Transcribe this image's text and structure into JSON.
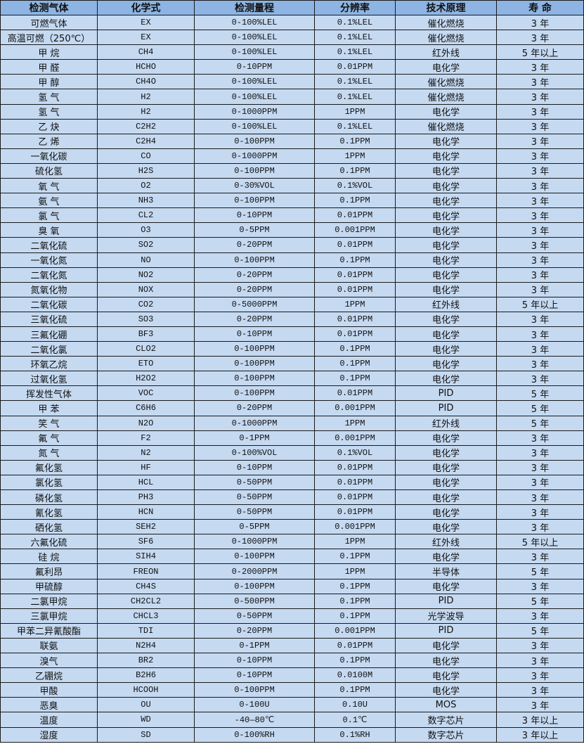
{
  "colors": {
    "header_bg": "#8DB4E2",
    "row_bg": "#C5D9F1",
    "border": "#1a1a1a"
  },
  "headers": [
    "检测气体",
    "化学式",
    "检测量程",
    "分辨率",
    "技术原理",
    "寿 命"
  ],
  "rows": [
    [
      "可燃气体",
      "EX",
      "0-100%LEL",
      "0.1%LEL",
      "催化燃烧",
      "3 年"
    ],
    [
      "高温可燃（250℃）",
      "EX",
      "0-100%LEL",
      "0.1%LEL",
      "催化燃烧",
      "3 年"
    ],
    [
      "甲 烷",
      "CH4",
      "0-100%LEL",
      "0.1%LEL",
      "红外线",
      "5 年以上"
    ],
    [
      "甲 醛",
      "HCHO",
      "0-10PPM",
      "0.01PPM",
      "电化学",
      "3 年"
    ],
    [
      "甲 醇",
      "CH4O",
      "0-100%LEL",
      "0.1%LEL",
      "催化燃烧",
      "3 年"
    ],
    [
      "氢 气",
      "H2",
      "0-100%LEL",
      "0.1%LEL",
      "催化燃烧",
      "3 年"
    ],
    [
      "氢 气",
      "H2",
      "0-1000PPM",
      "1PPM",
      "电化学",
      "3 年"
    ],
    [
      "乙 炔",
      "C2H2",
      "0-100%LEL",
      "0.1%LEL",
      "催化燃烧",
      "3 年"
    ],
    [
      "乙 烯",
      "C2H4",
      "0-100PPM",
      "0.1PPM",
      "电化学",
      "3 年"
    ],
    [
      "一氧化碳",
      "CO",
      "0-1000PPM",
      "1PPM",
      "电化学",
      "3 年"
    ],
    [
      "硫化氢",
      "H2S",
      "0-100PPM",
      "0.1PPM",
      "电化学",
      "3 年"
    ],
    [
      "氧 气",
      "O2",
      "0-30%VOL",
      "0.1%VOL",
      "电化学",
      "3 年"
    ],
    [
      "氨 气",
      "NH3",
      "0-100PPM",
      "0.1PPM",
      "电化学",
      "3 年"
    ],
    [
      "氯 气",
      "CL2",
      "0-10PPM",
      "0.01PPM",
      "电化学",
      "3 年"
    ],
    [
      "臭 氧",
      "O3",
      "0-5PPM",
      "0.001PPM",
      "电化学",
      "3 年"
    ],
    [
      "二氧化硫",
      "SO2",
      "0-20PPM",
      "0.01PPM",
      "电化学",
      "3 年"
    ],
    [
      "一氧化氮",
      "NO",
      "0-100PPM",
      "0.1PPM",
      "电化学",
      "3 年"
    ],
    [
      "二氧化氮",
      "NO2",
      "0-20PPM",
      "0.01PPM",
      "电化学",
      "3 年"
    ],
    [
      "氮氧化物",
      "NOX",
      "0-20PPM",
      "0.01PPM",
      "电化学",
      "3 年"
    ],
    [
      "二氧化碳",
      "CO2",
      "0-5000PPM",
      "1PPM",
      "红外线",
      "5 年以上"
    ],
    [
      "三氧化硫",
      "SO3",
      "0-20PPM",
      "0.01PPM",
      "电化学",
      "3 年"
    ],
    [
      "三氟化硼",
      "BF3",
      "0-10PPM",
      "0.01PPM",
      "电化学",
      "3 年"
    ],
    [
      "二氧化氯",
      "CLO2",
      "0-100PPM",
      "0.1PPM",
      "电化学",
      "3 年"
    ],
    [
      "环氧乙烷",
      "ETO",
      "0-100PPM",
      "0.1PPM",
      "电化学",
      "3 年"
    ],
    [
      "过氧化氢",
      "H2O2",
      "0-100PPM",
      "0.1PPM",
      "电化学",
      "3 年"
    ],
    [
      "挥发性气体",
      "VOC",
      "0-100PPM",
      "0.01PPM",
      "PID",
      "5 年"
    ],
    [
      "甲 苯",
      "C6H6",
      "0-20PPM",
      "0.001PPM",
      "PID",
      "5 年"
    ],
    [
      "笑 气",
      "N2O",
      "0-1000PPM",
      "1PPM",
      "红外线",
      "5 年"
    ],
    [
      "氟 气",
      "F2",
      "0-1PPM",
      "0.001PPM",
      "电化学",
      "3 年"
    ],
    [
      "氮 气",
      "N2",
      "0-100%VOL",
      "0.1%VOL",
      "电化学",
      "3 年"
    ],
    [
      "氟化氢",
      "HF",
      "0-10PPM",
      "0.01PPM",
      "电化学",
      "3 年"
    ],
    [
      "氯化氢",
      "HCL",
      "0-50PPM",
      "0.01PPM",
      "电化学",
      "3 年"
    ],
    [
      "磷化氢",
      "PH3",
      "0-50PPM",
      "0.01PPM",
      "电化学",
      "3 年"
    ],
    [
      "氰化氢",
      "HCN",
      "0-50PPM",
      "0.01PPM",
      "电化学",
      "3 年"
    ],
    [
      "硒化氢",
      "SEH2",
      "0-5PPM",
      "0.001PPM",
      "电化学",
      "3 年"
    ],
    [
      "六氟化硫",
      "SF6",
      "0-1000PPM",
      "1PPM",
      "红外线",
      "5 年以上"
    ],
    [
      "硅 烷",
      "SIH4",
      "0-100PPM",
      "0.1PPM",
      "电化学",
      "3 年"
    ],
    [
      "氟利昂",
      "FREON",
      "0-2000PPM",
      "1PPM",
      "半导体",
      "5 年"
    ],
    [
      "甲硫醇",
      "CH4S",
      "0-100PPM",
      "0.1PPM",
      "电化学",
      "3 年"
    ],
    [
      "二氯甲烷",
      "CH2CL2",
      "0-500PPM",
      "0.1PPM",
      "PID",
      "5 年"
    ],
    [
      "三氯甲烷",
      "CHCL3",
      "0-50PPM",
      "0.1PPM",
      "光学波导",
      "3 年"
    ],
    [
      "甲苯二异氰酸酯",
      "TDI",
      "0-20PPM",
      "0.001PPM",
      "PID",
      "5 年"
    ],
    [
      "联氨",
      "N2H4",
      "0-1PPM",
      "0.01PPM",
      "电化学",
      "3 年"
    ],
    [
      "溴气",
      "BR2",
      "0-10PPM",
      "0.1PPM",
      "电化学",
      "3 年"
    ],
    [
      "乙硼烷",
      "B2H6",
      "0-10PPM",
      "0.0100M",
      "电化学",
      "3 年"
    ],
    [
      "甲酸",
      "HCOOH",
      "0-100PPM",
      "0.1PPM",
      "电化学",
      "3 年"
    ],
    [
      "恶臭",
      "OU",
      "0-100U",
      "0.10U",
      "MOS",
      "3 年"
    ],
    [
      "温度",
      "WD",
      "-40—80℃",
      "0.1℃",
      "数字芯片",
      "3 年以上"
    ],
    [
      "湿度",
      "SD",
      "0-100%RH",
      "0.1%RH",
      "数字芯片",
      "3 年以上"
    ]
  ]
}
